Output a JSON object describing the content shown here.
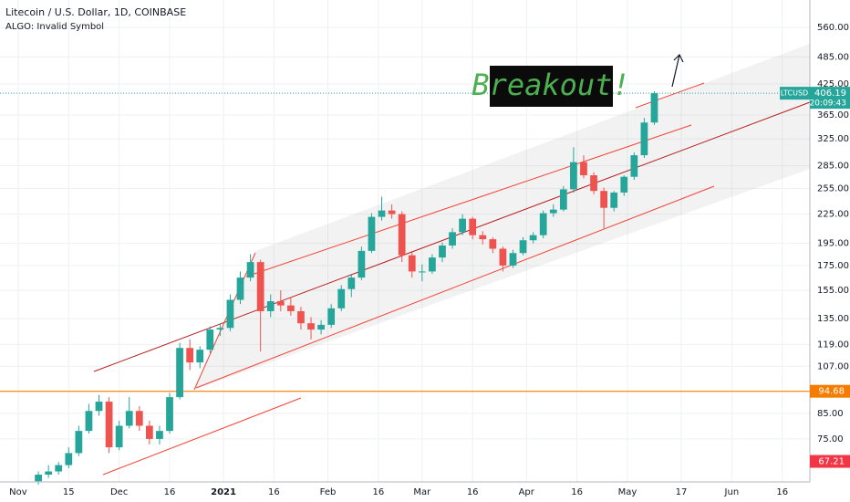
{
  "chart_data": {
    "type": "candlestick",
    "title": "Litecoin / U.S. Dollar, 1D, COINBASE",
    "subtitle": "ALGO: Invalid Symbol",
    "annotation": "Breakout!",
    "log_scale": true,
    "grid": true,
    "x": [
      6,
      9,
      12,
      15,
      18,
      21,
      24,
      27,
      30,
      33,
      36,
      39,
      42,
      45,
      48,
      51,
      54,
      57,
      60,
      63,
      66,
      69,
      72,
      75,
      78,
      81,
      84,
      87,
      90,
      93,
      96,
      99,
      102,
      105,
      108,
      111,
      114,
      117,
      120,
      123,
      126,
      129,
      132,
      135,
      138,
      141,
      144,
      147,
      150,
      153,
      156,
      159,
      162,
      165,
      168,
      171,
      174,
      177,
      180,
      183,
      186,
      189
    ],
    "series": [
      {
        "name": "LTCUSD",
        "up_color": "#26a69a",
        "down_color": "#ef5350",
        "open": [
          61,
          63,
          64,
          66,
          70,
          78,
          86,
          90,
          72,
          80,
          86,
          80,
          75,
          78,
          92,
          117,
          109,
          116,
          128,
          129,
          148,
          165,
          178,
          140,
          147,
          144,
          140,
          132,
          128,
          131,
          142,
          156,
          165,
          188,
          222,
          229,
          225,
          184,
          170,
          170,
          182,
          193,
          206,
          220,
          203,
          199,
          190,
          175,
          186,
          198,
          203,
          226,
          230,
          254,
          290,
          272,
          252,
          232,
          250,
          270,
          300,
          352
        ],
        "high": [
          64,
          66,
          67,
          72,
          80,
          89,
          93,
          92,
          82,
          92,
          88,
          82,
          80,
          94,
          120,
          122,
          118,
          130,
          132,
          152,
          170,
          185,
          180,
          152,
          155,
          150,
          143,
          136,
          134,
          145,
          159,
          168,
          192,
          226,
          245,
          236,
          228,
          188,
          176,
          185,
          196,
          210,
          225,
          222,
          207,
          201,
          192,
          189,
          201,
          206,
          229,
          236,
          258,
          312,
          300,
          276,
          256,
          252,
          272,
          304,
          360,
          410
        ],
        "low": [
          60,
          62,
          63,
          65,
          69,
          77,
          84,
          70,
          71,
          79,
          78,
          73,
          73,
          77,
          91,
          105,
          106,
          114,
          124,
          127,
          145,
          162,
          115,
          136,
          140,
          137,
          128,
          122,
          125,
          129,
          140,
          150,
          163,
          186,
          218,
          220,
          178,
          165,
          162,
          168,
          178,
          190,
          203,
          199,
          194,
          186,
          170,
          173,
          184,
          195,
          200,
          222,
          228,
          250,
          268,
          248,
          210,
          228,
          246,
          266,
          296,
          348
        ],
        "close": [
          63,
          64,
          66,
          70,
          78,
          86,
          90,
          72,
          80,
          86,
          80,
          75,
          78,
          92,
          117,
          109,
          116,
          128,
          129,
          148,
          165,
          178,
          140,
          147,
          144,
          140,
          132,
          128,
          131,
          142,
          156,
          165,
          188,
          222,
          229,
          225,
          184,
          170,
          170,
          182,
          193,
          206,
          220,
          203,
          199,
          190,
          175,
          186,
          198,
          203,
          226,
          230,
          254,
          290,
          272,
          252,
          232,
          250,
          270,
          300,
          352,
          406.19
        ],
        "countdown": "20:09:43"
      }
    ],
    "levels": [
      {
        "value": 94.68,
        "color": "#f57c00",
        "line": true
      },
      {
        "value": 67.21,
        "color": "#f23645",
        "line": false
      }
    ],
    "xlim": [
      -5.4,
      235.2
    ],
    "xticks": [
      {
        "value": 0,
        "label": "Nov"
      },
      15,
      {
        "value": 30,
        "label": "Dec"
      },
      {
        "value": 45,
        "label": "16"
      },
      {
        "value": 61,
        "label": "2021"
      },
      {
        "value": 76,
        "label": "16"
      },
      {
        "value": 92,
        "label": "Feb"
      },
      {
        "value": 107,
        "label": "16"
      },
      {
        "value": 120,
        "label": "Mar"
      },
      {
        "value": 135,
        "label": "16"
      },
      {
        "value": 151,
        "label": "Apr"
      },
      {
        "value": 166,
        "label": "16"
      },
      {
        "value": 181,
        "label": "May"
      },
      {
        "value": 197,
        "label": "17"
      },
      {
        "value": 212,
        "label": "Jun"
      },
      {
        "value": 227,
        "label": "16"
      }
    ],
    "ylim": [
      60.8,
      640.5
    ],
    "yticks": [
      {
        "value": 75,
        "label": "75.00"
      },
      {
        "value": 85,
        "label": "85.00"
      },
      {
        "value": 107,
        "label": "107.00"
      },
      {
        "value": 119,
        "label": "119.00"
      },
      {
        "value": 135,
        "label": "135.00"
      },
      {
        "value": 155,
        "label": "155.00"
      },
      {
        "value": 175,
        "label": "175.00"
      },
      {
        "value": 195,
        "label": "195.00"
      },
      {
        "value": 225,
        "label": "225.00"
      },
      {
        "value": 255,
        "label": "255.00"
      },
      {
        "value": 285,
        "label": "285.00"
      },
      {
        "value": 325,
        "label": "325.00"
      },
      {
        "value": 365,
        "label": "365.00"
      },
      {
        "value": 425,
        "label": "425.00"
      },
      {
        "value": 485,
        "label": "485.00"
      },
      {
        "value": 560,
        "label": "560.00"
      }
    ]
  }
}
